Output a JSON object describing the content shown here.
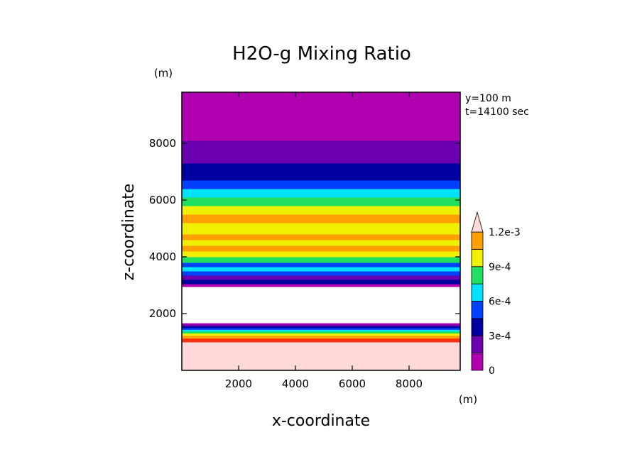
{
  "chart_data": {
    "type": "heatmap",
    "title": "H2O-g Mixing Ratio",
    "xlabel": "x-coordinate",
    "ylabel": "z-coordinate",
    "x_unit": "(m)",
    "y_unit": "(m)",
    "annotations": [
      "y=100 m",
      "t=14100 sec"
    ],
    "xlim": [
      0,
      9800
    ],
    "ylim": [
      0,
      9800
    ],
    "x_ticks": [
      2000,
      4000,
      6000,
      8000
    ],
    "x_tick_labels": [
      "2000",
      "4000",
      "6000",
      "8000"
    ],
    "y_ticks": [
      2000,
      4000,
      6000,
      8000
    ],
    "y_tick_labels": [
      "2000",
      "4000",
      "6000",
      "8000"
    ],
    "colorbar": {
      "levels": [
        0,
        0.00015,
        0.0003,
        0.00045,
        0.0006,
        0.00075,
        0.0009,
        0.00105,
        0.0012
      ],
      "colors": [
        "#b000b0",
        "#6a00b0",
        "#0000a0",
        "#0040ff",
        "#00e0ff",
        "#20e060",
        "#f0f000",
        "#ffa000",
        "#ff3010"
      ],
      "over_color": "#ffd8d8",
      "labels": [
        "0",
        "3e-4",
        "6e-4",
        "9e-4",
        "1.2e-3"
      ],
      "label_values": [
        0,
        0.0003,
        0.0006,
        0.0009,
        0.0012
      ]
    },
    "bands": [
      {
        "z0": 0,
        "z1": 1000,
        "color": "#ffd8d8"
      },
      {
        "z0": 1000,
        "z1": 1130,
        "color": "#ff3010"
      },
      {
        "z0": 1130,
        "z1": 1230,
        "color": "#ffa000"
      },
      {
        "z0": 1230,
        "z1": 1310,
        "color": "#f0f000"
      },
      {
        "z0": 1310,
        "z1": 1380,
        "color": "#20e060"
      },
      {
        "z0": 1380,
        "z1": 1440,
        "color": "#00e0ff"
      },
      {
        "z0": 1440,
        "z1": 1500,
        "color": "#0040ff"
      },
      {
        "z0": 1500,
        "z1": 1560,
        "color": "#0000a0"
      },
      {
        "z0": 1560,
        "z1": 1620,
        "color": "#6a00b0"
      },
      {
        "z0": 1620,
        "z1": 1660,
        "color": "#b000b0"
      },
      {
        "z0": 2950,
        "z1": 3050,
        "color": "#b000b0"
      },
      {
        "z0": 3050,
        "z1": 3200,
        "color": "#0000a0"
      },
      {
        "z0": 3200,
        "z1": 3350,
        "color": "#6a00b0"
      },
      {
        "z0": 3350,
        "z1": 3500,
        "color": "#0040ff"
      },
      {
        "z0": 3500,
        "z1": 3650,
        "color": "#00e0ff"
      },
      {
        "z0": 3650,
        "z1": 3800,
        "color": "#0040ff"
      },
      {
        "z0": 3800,
        "z1": 4000,
        "color": "#20e060"
      },
      {
        "z0": 4000,
        "z1": 4200,
        "color": "#f0f000"
      },
      {
        "z0": 4200,
        "z1": 4400,
        "color": "#ffa000"
      },
      {
        "z0": 4400,
        "z1": 4600,
        "color": "#f0f000"
      },
      {
        "z0": 4600,
        "z1": 4800,
        "color": "#ffa000"
      },
      {
        "z0": 4800,
        "z1": 5200,
        "color": "#f0f000"
      },
      {
        "z0": 5200,
        "z1": 5500,
        "color": "#ffa000"
      },
      {
        "z0": 5500,
        "z1": 5800,
        "color": "#f0f000"
      },
      {
        "z0": 5800,
        "z1": 6100,
        "color": "#20e060"
      },
      {
        "z0": 6100,
        "z1": 6400,
        "color": "#00e0ff"
      },
      {
        "z0": 6400,
        "z1": 6700,
        "color": "#0040ff"
      },
      {
        "z0": 6700,
        "z1": 7300,
        "color": "#0000a0"
      },
      {
        "z0": 7300,
        "z1": 8100,
        "color": "#6a00b0"
      },
      {
        "z0": 8100,
        "z1": 9800,
        "color": "#b000b0"
      }
    ]
  }
}
